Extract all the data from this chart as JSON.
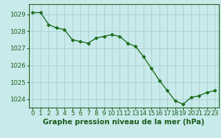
{
  "x": [
    0,
    1,
    2,
    3,
    4,
    5,
    6,
    7,
    8,
    9,
    10,
    11,
    12,
    13,
    14,
    15,
    16,
    17,
    18,
    19,
    20,
    21,
    22,
    23
  ],
  "y": [
    1029.1,
    1029.1,
    1028.4,
    1028.2,
    1028.1,
    1027.5,
    1027.4,
    1027.3,
    1027.6,
    1027.7,
    1027.8,
    1027.7,
    1027.3,
    1027.1,
    1026.5,
    1025.8,
    1025.1,
    1024.5,
    1023.9,
    1023.7,
    1024.1,
    1024.2,
    1024.4,
    1024.5
  ],
  "line_color": "#1a6b1a",
  "marker_color": "#1a6b1a",
  "bg_color": "#c8eaea",
  "grid_color": "#a8cccc",
  "label_color": "#1a5c1a",
  "xlabel": "Graphe pression niveau de la mer (hPa)",
  "ylim": [
    1023.5,
    1029.6
  ],
  "yticks": [
    1024,
    1025,
    1026,
    1027,
    1028,
    1029
  ],
  "xticks": [
    0,
    1,
    2,
    3,
    4,
    5,
    6,
    7,
    8,
    9,
    10,
    11,
    12,
    13,
    14,
    15,
    16,
    17,
    18,
    19,
    20,
    21,
    22,
    23
  ],
  "tick_fontsize": 6.5,
  "xlabel_fontsize": 7.5,
  "marker_size": 2.5,
  "linewidth": 1.0
}
